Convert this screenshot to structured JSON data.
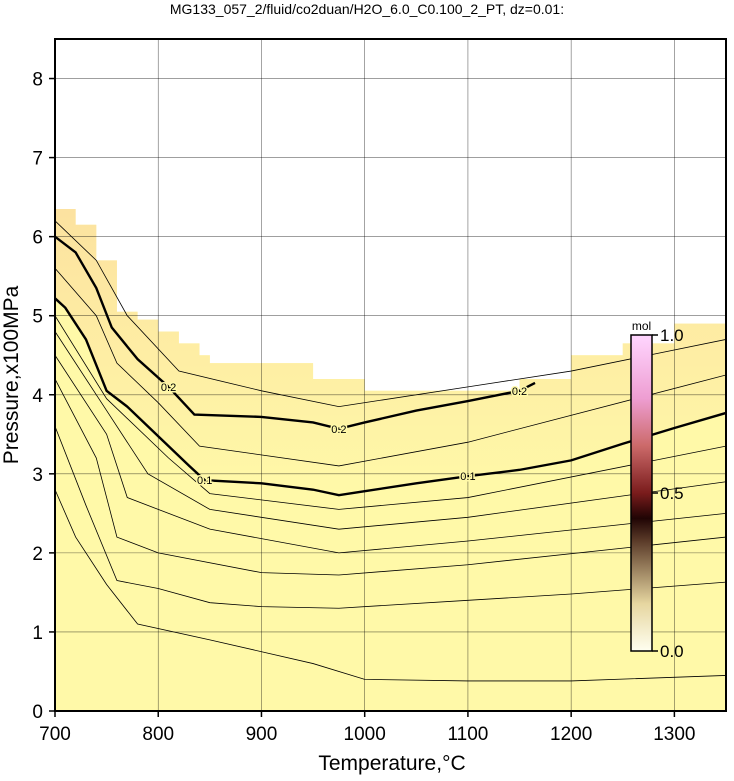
{
  "chart_data": {
    "type": "contour",
    "title": "MG133_057_2/fluid/co2duan/H2O_6.0_C0.100_2_PT, dz=0.01:",
    "x_label": "Temperature,°C",
    "y_label": "Pressure,x100MPa",
    "xlim": [
      700,
      1350
    ],
    "ylim": [
      0,
      8.5
    ],
    "xticks": [
      700,
      800,
      900,
      1000,
      1100,
      1200,
      1300
    ],
    "yticks": [
      0,
      1,
      2,
      3,
      4,
      5,
      6,
      7,
      8
    ],
    "grid": true,
    "fill_color": "#fff9a8",
    "upper_fill_color": "#f9c896",
    "domain_top": {
      "x": [
        700,
        720,
        740,
        760,
        780,
        800,
        820,
        840,
        850,
        900,
        950,
        1000,
        1100,
        1150,
        1200,
        1250,
        1300,
        1350
      ],
      "values": [
        6.35,
        6.15,
        5.7,
        5.05,
        4.95,
        4.8,
        4.65,
        4.5,
        4.4,
        4.4,
        4.2,
        4.05,
        4.05,
        4.2,
        4.5,
        4.65,
        4.9,
        5.05
      ]
    },
    "series": [
      {
        "x": [
          700,
          720,
          750,
          780,
          850,
          950,
          1000,
          1100,
          1200,
          1350
        ],
        "values": [
          2.8,
          2.2,
          1.6,
          1.1,
          0.9,
          0.6,
          0.4,
          0.38,
          0.38,
          0.45
        ],
        "color": "#000000"
      },
      {
        "x": [
          700,
          730,
          760,
          800,
          850,
          900,
          975,
          1100,
          1200,
          1350
        ],
        "values": [
          3.6,
          2.6,
          1.65,
          1.55,
          1.37,
          1.32,
          1.3,
          1.4,
          1.48,
          1.63
        ],
        "color": "#000000"
      },
      {
        "x": [
          700,
          740,
          760,
          800,
          900,
          975,
          1100,
          1350
        ],
        "values": [
          4.2,
          3.2,
          2.2,
          2.0,
          1.75,
          1.72,
          1.85,
          2.2
        ],
        "color": "#000000"
      },
      {
        "x": [
          700,
          750,
          770,
          850,
          975,
          1100,
          1350
        ],
        "values": [
          4.5,
          3.5,
          2.7,
          2.3,
          2.0,
          2.15,
          2.5
        ],
        "color": "#000000"
      },
      {
        "x": [
          700,
          750,
          790,
          850,
          975,
          1100,
          1350
        ],
        "values": [
          4.8,
          3.8,
          3.0,
          2.55,
          2.3,
          2.45,
          2.9
        ],
        "color": "#000000"
      },
      {
        "x": [
          700,
          750,
          810,
          850,
          975,
          1100,
          1350
        ],
        "values": [
          5.0,
          3.95,
          3.2,
          2.75,
          2.55,
          2.7,
          3.35
        ],
        "color": "#000000"
      },
      {
        "level": 0.1,
        "bold": true,
        "x": [
          700,
          710,
          730,
          750,
          770,
          790,
          810,
          830,
          845,
          900,
          950,
          975,
          1000,
          1050,
          1100,
          1150,
          1200,
          1250,
          1300,
          1350
        ],
        "values": [
          5.22,
          5.1,
          4.7,
          4.05,
          3.85,
          3.6,
          3.35,
          3.1,
          2.92,
          2.88,
          2.8,
          2.73,
          2.78,
          2.88,
          2.97,
          3.05,
          3.17,
          3.38,
          3.58,
          3.77
        ],
        "color": "#000000"
      },
      {
        "x": [
          700,
          740,
          760,
          800,
          840,
          975,
          1100,
          1350
        ],
        "values": [
          5.6,
          5.0,
          4.4,
          3.9,
          3.35,
          3.1,
          3.4,
          4.25
        ],
        "color": "#000000"
      },
      {
        "level": 0.2,
        "bold": true,
        "x": [
          700,
          720,
          740,
          755,
          780,
          810,
          835,
          900,
          950,
          975,
          1000,
          1050,
          1100,
          1150,
          1165
        ],
        "values": [
          6.0,
          5.8,
          5.35,
          4.85,
          4.45,
          4.1,
          3.75,
          3.72,
          3.65,
          3.57,
          3.65,
          3.8,
          3.92,
          4.05,
          4.15
        ],
        "color": "#000000"
      },
      {
        "x": [
          700,
          740,
          770,
          820,
          900,
          975,
          1100,
          1200,
          1350
        ],
        "values": [
          6.2,
          5.7,
          5.0,
          4.3,
          4.05,
          3.85,
          4.1,
          4.3,
          4.7
        ],
        "color": "#000000"
      }
    ],
    "colorbar": {
      "label": "mol",
      "lim": [
        0,
        1
      ],
      "ticks": [
        {
          "value": 0,
          "label": "0.0"
        },
        0.5,
        {
          "value": 1,
          "label": "1.0"
        }
      ],
      "colormap": [
        {
          "value": 0,
          "color": "#fffff0"
        },
        {
          "value": 0.15,
          "color": "#e6d6a0"
        },
        {
          "value": 0.35,
          "color": "#5a3a28"
        },
        {
          "value": 0.42,
          "color": "#200404"
        },
        {
          "value": 0.5,
          "color": "#7a1c1c"
        },
        {
          "value": 0.65,
          "color": "#cc6a6a"
        },
        {
          "value": 0.8,
          "color": "#ee9ed2"
        },
        {
          "value": 1,
          "color": "#ffd6ff"
        }
      ]
    }
  }
}
